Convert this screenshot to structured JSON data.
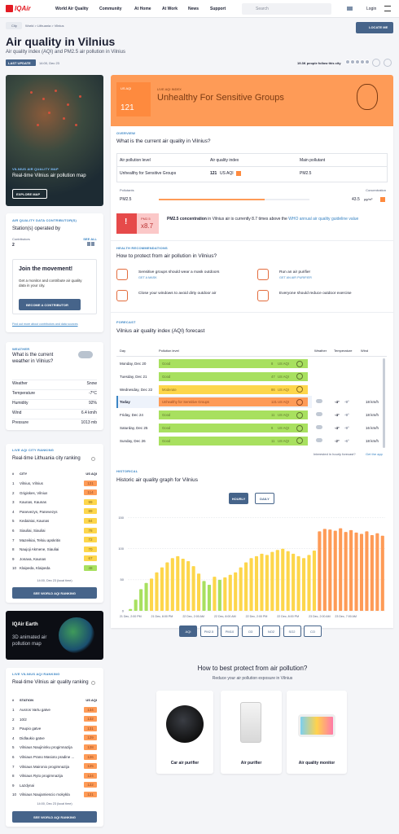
{
  "nav": {
    "logo": "IQAir",
    "links": [
      "World Air Quality",
      "Community",
      "At Home",
      "At Work",
      "News",
      "Support"
    ],
    "search": "Search",
    "login": "Login",
    "locate": "LOCATE ME"
  },
  "breadcrumb": {
    "type": "City",
    "path": "World > Lithuania > Vilnius"
  },
  "header": {
    "title": "Air quality in Vilnius",
    "subtitle": "Air quality index (AQI) and PM2.5 air pollution in Vilnius",
    "last_update_label": "LAST UPDATE",
    "last_update": "14:00, Dec 23",
    "followers": "19.3K people follow this city"
  },
  "map_card": {
    "label": "VILNIUS AIR QUALITY MAP",
    "title": "Real-time Vilnius air pollution map",
    "button": "EXPLORE MAP"
  },
  "contributors": {
    "label": "AIR QUALITY DATA CONTRIBUTOR(S)",
    "title": "Station(s) operated by",
    "column": "Contributors",
    "see_all": "SEE ALL",
    "count": 2
  },
  "join": {
    "title": "Join the movement!",
    "text": "Get a monitor and contribute air quality data in your city.",
    "button": "BECOME A CONTRIBUTOR",
    "link": "Find out more about contributors and data sources"
  },
  "weather": {
    "label": "WEATHER",
    "title": "What is the current weather in Vilnius?",
    "rows": [
      [
        "Weather",
        "Snow"
      ],
      [
        "Temperature",
        "-7°C"
      ],
      [
        "Humidity",
        "92%"
      ],
      [
        "Wind",
        "6.4 km/h"
      ],
      [
        "Pressure",
        "1013 mb"
      ]
    ]
  },
  "city_ranking": {
    "label": "LIVE AQI CITY RANKING",
    "title": "Real-time Lithuania city ranking",
    "headers": [
      "#",
      "CITY",
      "US AQI"
    ],
    "rows": [
      {
        "rank": 1,
        "name": "Vilnius, Vilnius",
        "aqi": 121
      },
      {
        "rank": 2,
        "name": "Grigiskes, Vilnius",
        "aqi": 114
      },
      {
        "rank": 3,
        "name": "Kaunas, Kaunas",
        "aqi": 99
      },
      {
        "rank": 4,
        "name": "Panevezys, Panevezys",
        "aqi": 89
      },
      {
        "rank": 5,
        "name": "Kedainiai, Kaunas",
        "aqi": 84
      },
      {
        "rank": 6,
        "name": "Siauliai, Siauliai",
        "aqi": 78
      },
      {
        "rank": 7,
        "name": "Mazeikiai, Telsiu apskritis",
        "aqi": 72
      },
      {
        "rank": 8,
        "name": "Naujoji Akmene, Siauliai",
        "aqi": 70
      },
      {
        "rank": 9,
        "name": "Jonava, Kaunas",
        "aqi": 67
      },
      {
        "rank": 10,
        "name": "Klaipeda, Klaipeda",
        "aqi": 48
      }
    ],
    "time": "14:00, Dec 23 (local time)",
    "button": "SEE WORLD AQI RANKING"
  },
  "earth": {
    "logo": "IQAir Earth",
    "text": "3D animated air pollution map"
  },
  "station_ranking": {
    "label": "LIVE VILNIUS AQI RANKING",
    "title": "Real-time Vilnius air quality ranking",
    "headers": [
      "#",
      "STATION",
      "US AQI"
    ],
    "rows": [
      {
        "rank": 1,
        "name": "Ausros Vartu gatve",
        "aqi": 134
      },
      {
        "rank": 2,
        "name": "10/2",
        "aqi": 132
      },
      {
        "rank": 3,
        "name": "Paupio gatve",
        "aqi": 131
      },
      {
        "rank": 4,
        "name": "Didlaukio gatve",
        "aqi": 129
      },
      {
        "rank": 5,
        "name": "Vilniaus Naujininku progimnazija",
        "aqi": 128
      },
      {
        "rank": 6,
        "name": "Vilniaus Prano Masioto pradine ...",
        "aqi": 126
      },
      {
        "rank": 7,
        "name": "Vilniaus Maironio progimnazija",
        "aqi": 125
      },
      {
        "rank": 8,
        "name": "Vilniaus Ryto progimnazija",
        "aqi": 124
      },
      {
        "rank": 9,
        "name": "Lazdynai",
        "aqi": 122
      },
      {
        "rank": 10,
        "name": "Vilniaus Naujamiescio mokykla",
        "aqi": 121
      }
    ],
    "time": "14:00, Dec 23 (local time)",
    "button": "SEE WORLD AQI RANKING"
  },
  "aqi_banner": {
    "unit": "US AQI",
    "value": 121,
    "label": "LIVE AQI INDEX",
    "status": "Unhealthy For Sensitive Groups"
  },
  "overview": {
    "label": "OVERVIEW",
    "title": "What is the current air quality in Vilnius?",
    "headers": [
      "Air pollution level",
      "Air quality index",
      "Main pollutant"
    ],
    "level": "Unhealthy for Sensitive Groups",
    "aqi": 121,
    "aqi_unit": "US AQI",
    "main_pollutant": "PM2.5",
    "pollutants_label": "Pollutants",
    "concentration_label": "Concentration",
    "pollutant": "PM2.5",
    "concentration": 43.5,
    "concentration_unit": "µg/m³",
    "alert_pollutant": "PM2.5",
    "alert_factor": "x8.7",
    "alert_bold": "PM2.5 concentration",
    "alert_text": " in Vilnius air is currently 8.7 times above the ",
    "alert_link": "WHO annual air quality guideline value"
  },
  "health": {
    "label": "HEALTH RECOMMENDATIONS",
    "title": "How to protect from air pollution in Vilnius?",
    "items": [
      {
        "text": "Sensitive groups should wear a mask outdoors",
        "link": "GET A MASK"
      },
      {
        "text": "Run an air purifier",
        "link": "GET AN AIR PURIFIER"
      },
      {
        "text": "Close your windows to avoid dirty outdoor air"
      },
      {
        "text": "Everyone should reduce outdoor exercise"
      }
    ]
  },
  "forecast": {
    "label": "FORECAST",
    "title": "Vilnius air quality index (AQI) forecast",
    "headers": [
      "Day",
      "Pollution level",
      "Weather",
      "Temperature",
      "Wind"
    ],
    "rows": [
      {
        "day": "Monday, Dec 20",
        "level": "Good",
        "aqi": 8,
        "unit": "US AQI"
      },
      {
        "day": "Tuesday, Dec 21",
        "level": "Good",
        "aqi": 47,
        "unit": "US AQI"
      },
      {
        "day": "Wednesday, Dec 22",
        "level": "Moderate",
        "aqi": 86,
        "unit": "US AQI"
      },
      {
        "day": "Today",
        "level": "Unhealthy for Sensitive Groups",
        "aqi": 121,
        "unit": "US AQI",
        "high": "-4°",
        "low": "-9°",
        "wind": "18 km/h"
      },
      {
        "day": "Friday, Dec 24",
        "level": "Good",
        "aqi": 11,
        "unit": "US AQI",
        "high": "-4°",
        "low": "-9°",
        "wind": "18 km/h"
      },
      {
        "day": "Saturday, Dec 25",
        "level": "Good",
        "aqi": 6,
        "unit": "US AQI",
        "high": "-4°",
        "low": "-9°",
        "wind": "16 km/h"
      },
      {
        "day": "Sunday, Dec 26",
        "level": "Good",
        "aqi": 11,
        "unit": "US AQI",
        "high": "-2°",
        "low": "-6°",
        "wind": "18 km/h"
      }
    ],
    "note": "Interested in hourly forecast?",
    "note_link": "Get the app"
  },
  "historical": {
    "label": "HISTORICAL",
    "title": "Historic air quality graph for Vilnius",
    "toggles": [
      "HOURLY",
      "DAILY"
    ],
    "pollutants": [
      "AQI",
      "PM2.5",
      "PM10",
      "O3",
      "NO2",
      "SO2",
      "CO"
    ]
  },
  "chart_data": {
    "type": "bar",
    "categories": [
      "21 Dec, 2:00 PM",
      null,
      null,
      null,
      null,
      null,
      "21 Dec, 8:00 PM",
      null,
      null,
      null,
      null,
      null,
      "22 Dec, 2:00 AM",
      null,
      null,
      null,
      null,
      null,
      "22 Dec, 8:00 AM",
      null,
      null,
      null,
      null,
      null,
      "22 Dec, 2:00 PM",
      null,
      null,
      null,
      null,
      null,
      "22 Dec, 8:00 PM",
      null,
      null,
      null,
      null,
      null,
      "23 Dec, 2:00 AM",
      null,
      null,
      null,
      null,
      "23 Dec, 7:00 AM",
      null,
      null,
      null,
      null,
      null,
      null,
      null
    ],
    "values": [
      3,
      18,
      35,
      45,
      52,
      62,
      70,
      78,
      85,
      88,
      84,
      80,
      72,
      60,
      48,
      42,
      55,
      50,
      54,
      58,
      62,
      70,
      78,
      85,
      88,
      92,
      90,
      95,
      98,
      100,
      96,
      92,
      88,
      85,
      90,
      97,
      128,
      132,
      131,
      129,
      133,
      127,
      130,
      126,
      124,
      128,
      122,
      125,
      121
    ],
    "ylim": [
      0,
      160
    ],
    "yticks": [
      0,
      50,
      100,
      150
    ],
    "grid": true
  },
  "protect": {
    "title": "How to best protect from air pollution?",
    "subtitle": "Reduce your air pollution exposure in Vilnius",
    "products": [
      "Car air purifier",
      "Air purifier",
      "Air quality monitor"
    ]
  }
}
